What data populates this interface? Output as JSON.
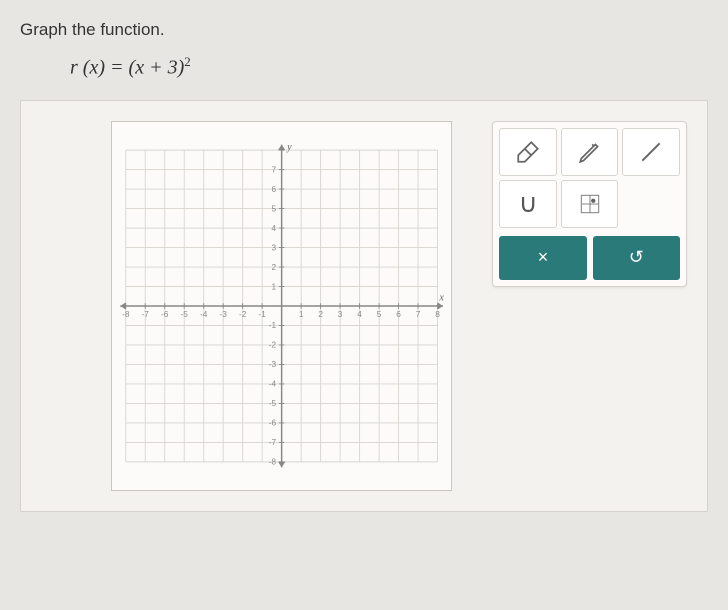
{
  "prompt": "Graph the function.",
  "equation_html": "<i>r</i> (<i>x</i>) = (<i>x</i> + 3)<sup>2</sup>",
  "graph": {
    "type": "coordinate-grid",
    "xlim": [
      -8,
      8
    ],
    "ylim": [
      -8,
      8
    ],
    "tick_step": 1,
    "grid_color": "#d9d5cf",
    "axis_color": "#8a8884",
    "background_color": "#fcfbf9",
    "x_axis_label": "x",
    "y_axis_label": "y",
    "x_tick_labels": [
      -8,
      -7,
      -6,
      -5,
      -4,
      -3,
      -2,
      -1,
      1,
      2,
      3,
      4,
      5,
      6,
      7,
      8
    ],
    "y_tick_labels": [
      -8,
      -7,
      -6,
      -5,
      -4,
      -3,
      -2,
      -1,
      1,
      2,
      3,
      4,
      5,
      6,
      7
    ]
  },
  "tools": {
    "eraser": "eraser",
    "pencil": "pencil",
    "line": "line",
    "parabola": "∪",
    "point_grid": "point-grid"
  },
  "actions": {
    "clear": "×",
    "undo": "↺"
  },
  "colors": {
    "page_bg": "#e8e6e3",
    "panel_bg": "#f4f2ef",
    "graph_bg": "#fcfbf9",
    "action_bg": "#2a7a7a"
  }
}
